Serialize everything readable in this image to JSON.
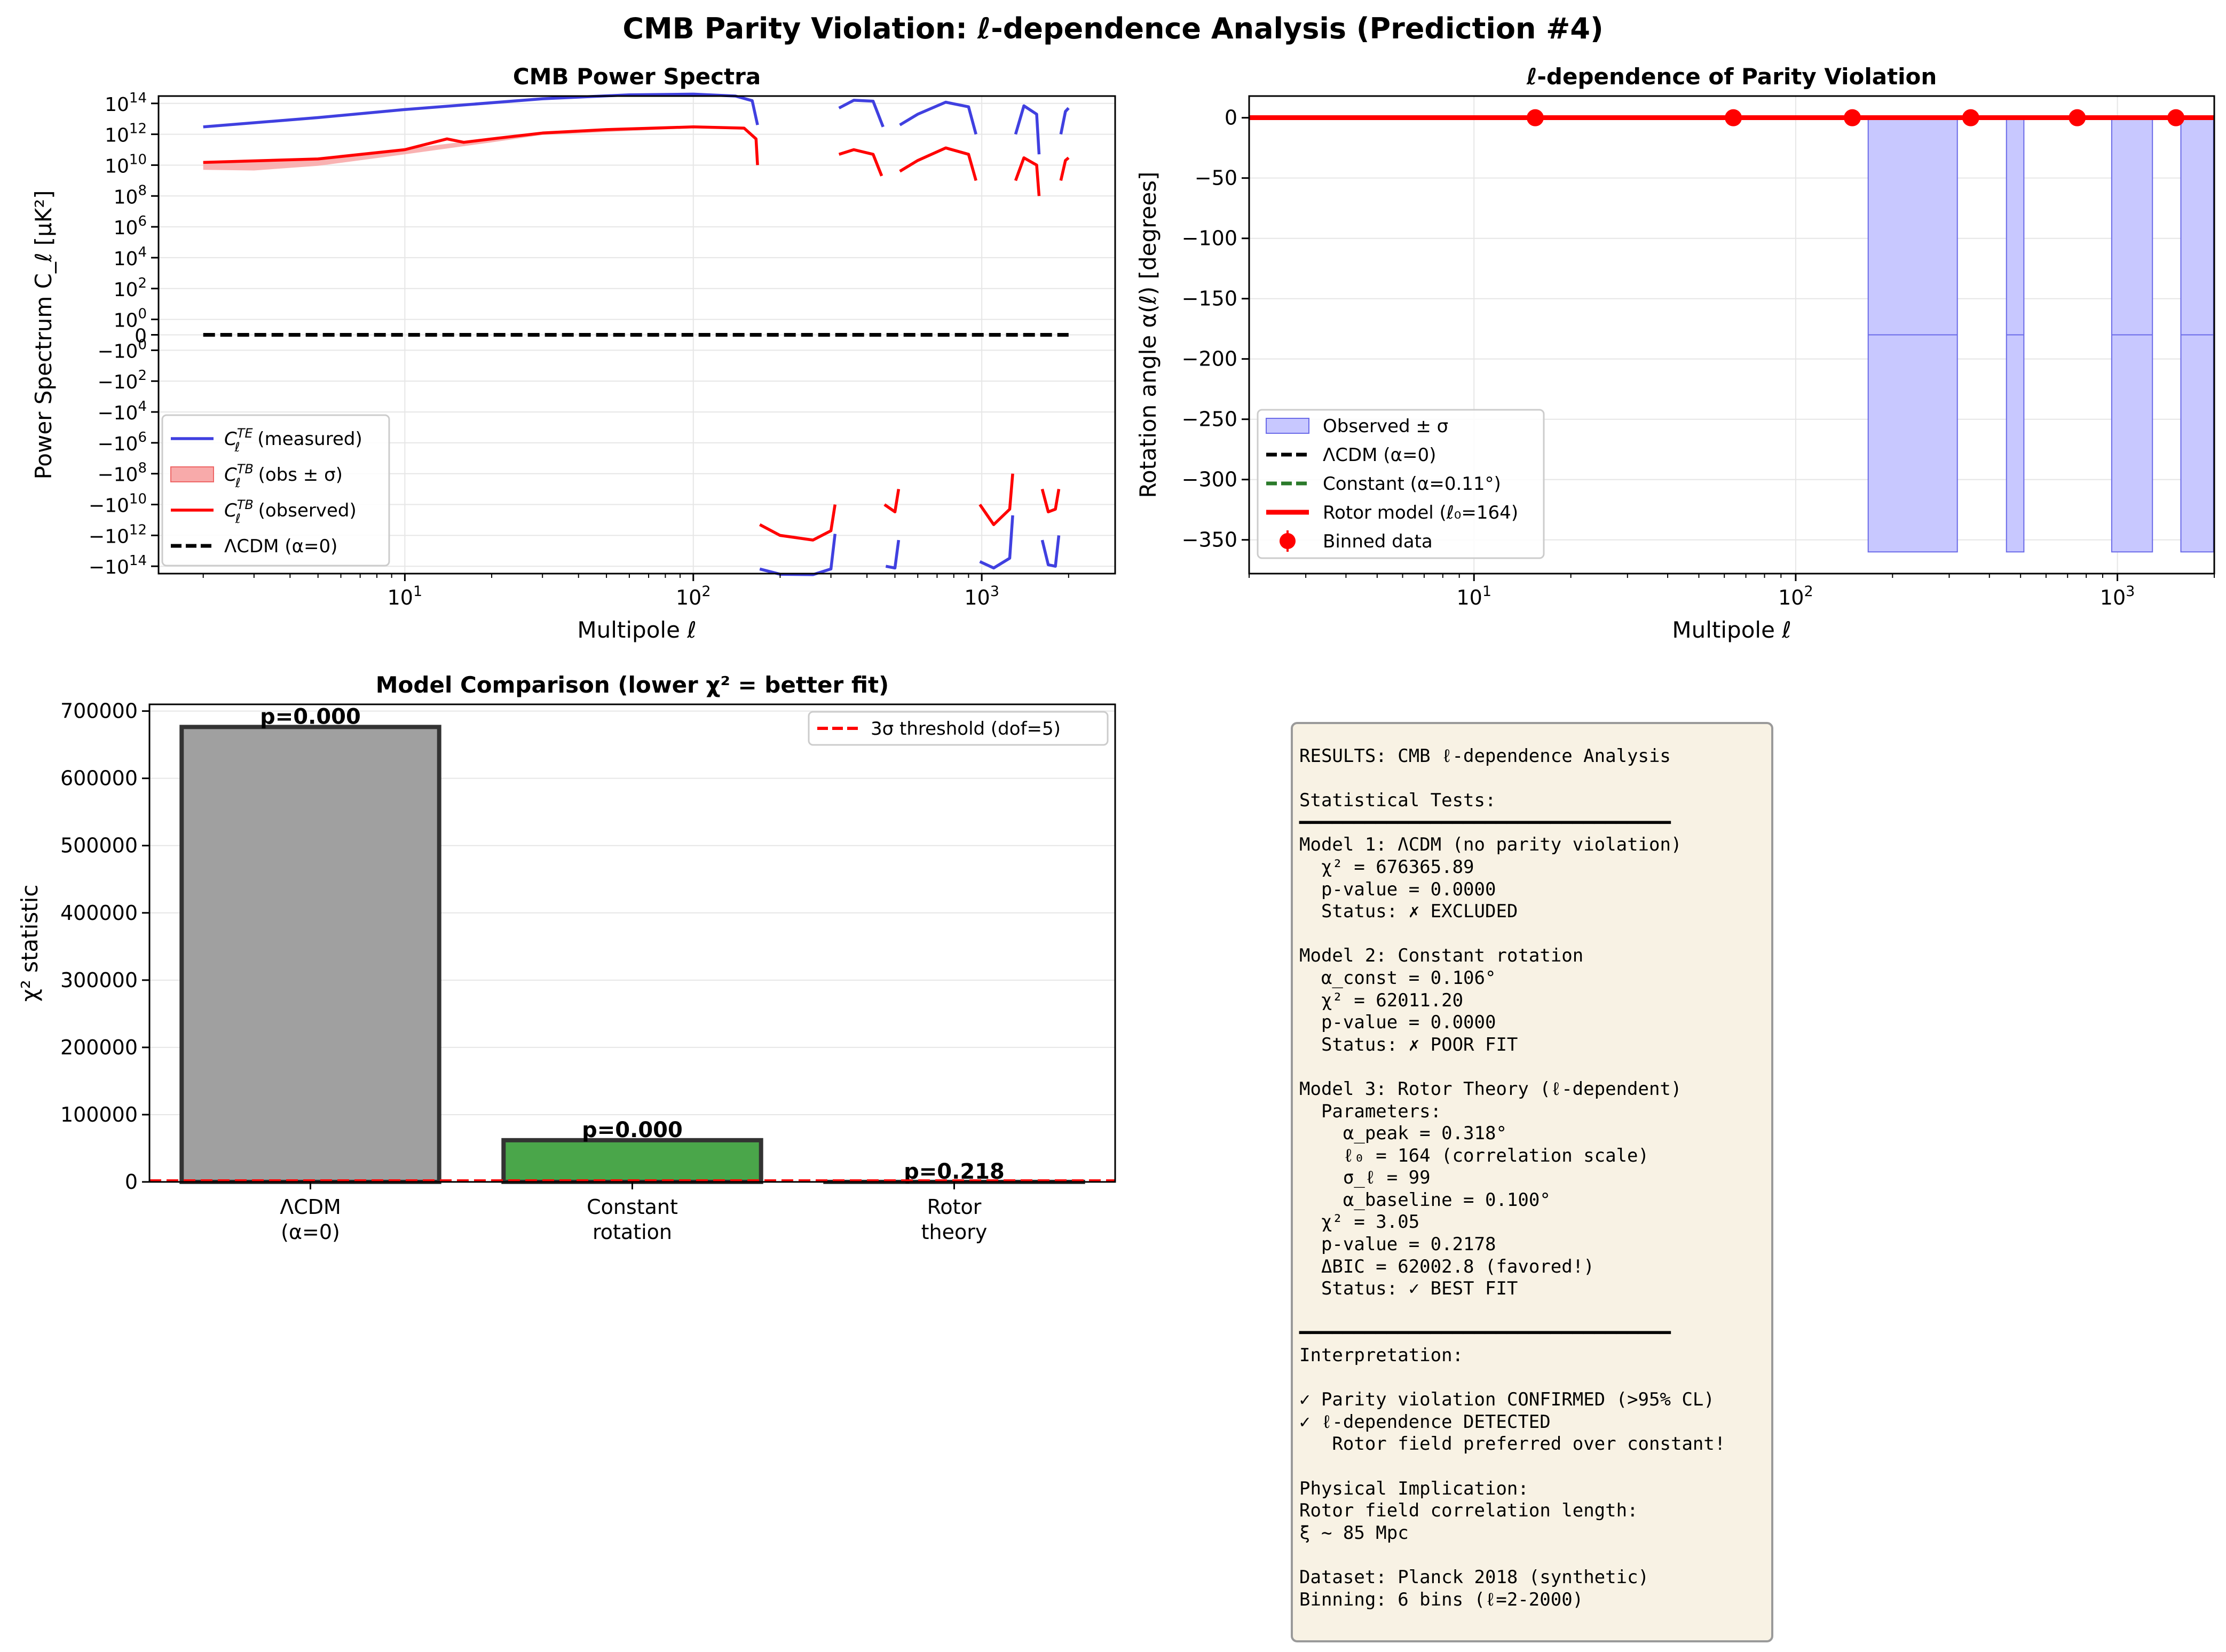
{
  "figure": {
    "title": "CMB Parity Violation: ℓ-dependence Analysis (Prediction #4)"
  },
  "colors": {
    "te": "#4040e0",
    "tb": "#ff0000",
    "tb_band": "#f8aaaa",
    "observed_band": "#c8c8ff",
    "lcdm": "#000000",
    "constant": "#2a7a2a",
    "bar_lcdm": "#a0a0a0",
    "bar_constant": "#4aa64a",
    "threshold": "#ff0000",
    "results_bg": "#f8f2e4"
  },
  "chart_data": [
    {
      "id": "power_spectra",
      "type": "line",
      "title": "CMB Power Spectra",
      "xlabel": "Multipole ℓ",
      "ylabel": "Power Spectrum C_ℓ [μK²]",
      "xscale": "log",
      "yscale": "symlog",
      "xlim": [
        1.4,
        2900
      ],
      "ylim": [
        -300000000000000.0,
        300000000000000.0
      ],
      "x_ticks": [
        {
          "value": 10,
          "label": "10",
          "sup": "1"
        },
        {
          "value": 100,
          "label": "10",
          "sup": "2"
        },
        {
          "value": 1000,
          "label": "10",
          "sup": "3"
        }
      ],
      "y_ticks": [
        {
          "value": 100000000000000.0,
          "label": "10",
          "sup": "14"
        },
        {
          "value": 1000000000000.0,
          "label": "10",
          "sup": "12"
        },
        {
          "value": 10000000000.0,
          "label": "10",
          "sup": "10"
        },
        {
          "value": 100000000.0,
          "label": "10",
          "sup": "8"
        },
        {
          "value": 1000000.0,
          "label": "10",
          "sup": "6"
        },
        {
          "value": 10000.0,
          "label": "10",
          "sup": "4"
        },
        {
          "value": 100.0,
          "label": "10",
          "sup": "2"
        },
        {
          "value": 1,
          "label": "10",
          "sup": "0"
        },
        {
          "value": 0,
          "label": "0",
          "sup": ""
        },
        {
          "value": -1,
          "label": "−10",
          "sup": "0"
        },
        {
          "value": -100.0,
          "label": "−10",
          "sup": "2"
        },
        {
          "value": -10000.0,
          "label": "−10",
          "sup": "4"
        },
        {
          "value": -1000000.0,
          "label": "−10",
          "sup": "6"
        },
        {
          "value": -100000000.0,
          "label": "−10",
          "sup": "8"
        },
        {
          "value": -10000000000.0,
          "label": "−10",
          "sup": "10"
        },
        {
          "value": -1000000000000.0,
          "label": "−10",
          "sup": "12"
        },
        {
          "value": -100000000000000.0,
          "label": "−10",
          "sup": "14"
        }
      ],
      "legend_position": "lower-left",
      "legend": [
        {
          "kind": "line",
          "color_key": "te",
          "base": "C",
          "sub": "ℓ",
          "sup": "TE",
          "text": " (measured)"
        },
        {
          "kind": "patch",
          "color_key": "tb_band",
          "base": "C",
          "sub": "ℓ",
          "sup": "TB",
          "text": " (obs ± σ)"
        },
        {
          "kind": "line",
          "color_key": "tb",
          "base": "C",
          "sub": "ℓ",
          "sup": "TB",
          "text": " (observed)"
        },
        {
          "kind": "dashed",
          "color_key": "lcdm",
          "base": "",
          "sub": "",
          "sup": "",
          "text": "ΛCDM (α=0)"
        }
      ],
      "series": [
        {
          "name": "C_ℓ^TE (measured)",
          "style": "line",
          "color_key": "te",
          "segments": [
            [
              [
                2,
                3000000000000.0
              ],
              [
                5,
                12000000000000.0
              ],
              [
                10,
                40000000000000.0
              ],
              [
                30,
                200000000000000.0
              ],
              [
                60,
                360000000000000.0
              ],
              [
                100,
                400000000000000.0
              ],
              [
                140,
                300000000000000.0
              ],
              [
                160,
                150000000000000.0
              ],
              [
                167,
                4000000000000.0
              ]
            ],
            [
              [
                170,
                -150000000000000.0
              ],
              [
                200,
                -330000000000000.0
              ],
              [
                260,
                -350000000000000.0
              ],
              [
                300,
                -150000000000000.0
              ],
              [
                310,
                -800000000000.0
              ]
            ],
            [
              [
                320,
                50000000000000.0
              ],
              [
                360,
                160000000000000.0
              ],
              [
                420,
                140000000000000.0
              ],
              [
                455,
                3000000000000.0
              ]
            ],
            [
              [
                465,
                -100000000000000.0
              ],
              [
                500,
                -130000000000000.0
              ],
              [
                515,
                -2000000000000.0
              ]
            ],
            [
              [
                520,
                4000000000000.0
              ],
              [
                600,
                20000000000000.0
              ],
              [
                750,
                120000000000000.0
              ],
              [
                900,
                60000000000000.0
              ],
              [
                955,
                1000000000000.0
              ]
            ],
            [
              [
                985,
                -50000000000000.0
              ],
              [
                1100,
                -130000000000000.0
              ],
              [
                1250,
                -30000000000000.0
              ],
              [
                1280,
                -50000000000.0
              ]
            ],
            [
              [
                1310,
                1000000000000.0
              ],
              [
                1400,
                70000000000000.0
              ],
              [
                1550,
                20000000000000.0
              ],
              [
                1580,
                50000000000.0
              ]
            ],
            [
              [
                1620,
                -2000000000000.0
              ],
              [
                1700,
                -80000000000000.0
              ],
              [
                1800,
                -100000000000000.0
              ],
              [
                1850,
                -1000000000000.0
              ]
            ],
            [
              [
                1880,
                1000000000000.0
              ],
              [
                1950,
                30000000000000.0
              ],
              [
                2000,
                50000000000000.0
              ]
            ]
          ]
        },
        {
          "name": "C_ℓ^TB (observed)",
          "style": "line",
          "color_key": "tb",
          "segments": [
            [
              [
                2,
                15000000000.0
              ],
              [
                5,
                25000000000.0
              ],
              [
                10,
                100000000000.0
              ],
              [
                14,
                500000000000.0
              ],
              [
                16,
                300000000000.0
              ],
              [
                20,
                500000000000.0
              ],
              [
                30,
                1200000000000.0
              ],
              [
                50,
                2000000000000.0
              ],
              [
                100,
                3000000000000.0
              ],
              [
                150,
                2500000000000.0
              ],
              [
                165,
                500000000000.0
              ],
              [
                167,
                10000000000.0
              ]
            ],
            [
              [
                170,
                -200000000000.0
              ],
              [
                200,
                -1000000000000.0
              ],
              [
                260,
                -2000000000000.0
              ],
              [
                300,
                -500000000000.0
              ],
              [
                310,
                -10000000000.0
              ]
            ],
            [
              [
                320,
                50000000000.0
              ],
              [
                360,
                100000000000.0
              ],
              [
                420,
                50000000000.0
              ],
              [
                450,
                2000000000.0
              ]
            ],
            [
              [
                460,
                -10000000000.0
              ],
              [
                500,
                -30000000000.0
              ],
              [
                515,
                -1000000000.0
              ]
            ],
            [
              [
                520,
                4000000000.0
              ],
              [
                600,
                20000000000.0
              ],
              [
                750,
                130000000000.0
              ],
              [
                900,
                50000000000.0
              ],
              [
                955,
                1000000000.0
              ]
            ],
            [
              [
                985,
                -10000000000.0
              ],
              [
                1100,
                -200000000000.0
              ],
              [
                1250,
                -20000000000.0
              ],
              [
                1280,
                -100000000.0
              ]
            ],
            [
              [
                1310,
                1000000000.0
              ],
              [
                1400,
                30000000000.0
              ],
              [
                1550,
                10000000000.0
              ],
              [
                1580,
                100000000.0
              ]
            ],
            [
              [
                1620,
                -1000000000.0
              ],
              [
                1700,
                -30000000000.0
              ],
              [
                1800,
                -20000000000.0
              ],
              [
                1850,
                -1000000000.0
              ]
            ],
            [
              [
                1880,
                1000000000.0
              ],
              [
                1950,
                20000000000.0
              ],
              [
                2000,
                30000000000.0
              ]
            ]
          ]
        },
        {
          "name": "ΛCDM (α=0)",
          "style": "dashed",
          "color_key": "lcdm",
          "segments": [
            [
              [
                2,
                0
              ],
              [
                2000,
                0
              ]
            ]
          ]
        }
      ],
      "band": {
        "name": "C_ℓ^TB (obs ± σ)",
        "color_key": "tb_band",
        "upper": [
          [
            2,
            16000000000.0
          ],
          [
            5,
            28000000000.0
          ],
          [
            10,
            110000000000.0
          ],
          [
            20,
            550000000000.0
          ],
          [
            30,
            1300000000000.0
          ],
          [
            100,
            3200000000000.0
          ],
          [
            150,
            2700000000000.0
          ]
        ],
        "lower": [
          [
            2,
            5000000000.0
          ],
          [
            3,
            4500000000.0
          ],
          [
            5,
            9000000000.0
          ],
          [
            10,
            50000000000.0
          ],
          [
            20,
            300000000000.0
          ],
          [
            30,
            900000000000.0
          ],
          [
            100,
            2500000000000.0
          ],
          [
            150,
            2000000000000.0
          ]
        ]
      }
    },
    {
      "id": "alpha_ell",
      "type": "line",
      "title": "ℓ-dependence of Parity Violation",
      "xlabel": "Multipole ℓ",
      "ylabel": "Rotation angle α(ℓ) [degrees]",
      "xscale": "log",
      "xlim": [
        2,
        2000
      ],
      "ylim": [
        -378,
        18
      ],
      "x_ticks": [
        {
          "value": 10,
          "label": "10",
          "sup": "1"
        },
        {
          "value": 100,
          "label": "10",
          "sup": "2"
        },
        {
          "value": 1000,
          "label": "10",
          "sup": "3"
        }
      ],
      "y_ticks": [
        {
          "value": 0,
          "label": "0"
        },
        {
          "value": -50,
          "label": "−50"
        },
        {
          "value": -100,
          "label": "−100"
        },
        {
          "value": -150,
          "label": "−150"
        },
        {
          "value": -200,
          "label": "−200"
        },
        {
          "value": -250,
          "label": "−250"
        },
        {
          "value": -300,
          "label": "−300"
        },
        {
          "value": -350,
          "label": "−350"
        }
      ],
      "legend_position": "lower-left",
      "legend": [
        {
          "kind": "patch",
          "color_key": "observed_band",
          "text": "Observed ± σ"
        },
        {
          "kind": "dashed",
          "color_key": "lcdm",
          "text": "ΛCDM (α=0)"
        },
        {
          "kind": "dashed",
          "color_key": "constant",
          "text": "Constant (α=0.11°)"
        },
        {
          "kind": "thick",
          "color_key": "tb",
          "text": "Rotor model (ℓ₀=164)"
        },
        {
          "kind": "marker",
          "color_key": "tb",
          "text": "Binned data"
        }
      ],
      "observed_band_regions": [
        {
          "x0": 168,
          "x1": 318,
          "top": 0,
          "mid": -180,
          "bottom": -360
        },
        {
          "x0": 452,
          "x1": 512,
          "top": 0,
          "mid": -180,
          "bottom": -360
        },
        {
          "x0": 960,
          "x1": 1285,
          "top": 0,
          "mid": -180,
          "bottom": -360
        },
        {
          "x0": 1575,
          "x1": 1990,
          "top": 0,
          "mid": -180,
          "bottom": -360
        }
      ],
      "series": [
        {
          "name": "ΛCDM (α=0)",
          "color_key": "lcdm",
          "style": "dashed",
          "x": [
            2,
            2000
          ],
          "y": [
            0,
            0
          ]
        },
        {
          "name": "Constant (α=0.11°)",
          "color_key": "constant",
          "style": "dashed",
          "x": [
            2,
            2000
          ],
          "y": [
            0.11,
            0.11
          ]
        },
        {
          "name": "Rotor model (ℓ₀=164)",
          "color_key": "tb",
          "style": "thick",
          "x": [
            2,
            2000
          ],
          "y": [
            0.1,
            0.1
          ]
        }
      ],
      "binned": {
        "name": "Binned data",
        "x": [
          15.5,
          64,
          150,
          350,
          750,
          1520
        ],
        "y": [
          0,
          0,
          0,
          0,
          0,
          0
        ]
      }
    },
    {
      "id": "model_comparison",
      "type": "bar",
      "title": "Model Comparison (lower χ² = better fit)",
      "ylabel": "χ² statistic",
      "ylim": [
        0,
        710000
      ],
      "y_ticks": [
        0,
        100000,
        200000,
        300000,
        400000,
        500000,
        600000,
        700000
      ],
      "categories": [
        [
          "ΛCDM",
          "(α=0)"
        ],
        [
          "Constant",
          "rotation"
        ],
        [
          "Rotor",
          "theory"
        ]
      ],
      "values": [
        676365.89,
        62011.2,
        3.05
      ],
      "bar_labels": [
        "p=0.000",
        "p=0.000",
        "p=0.218"
      ],
      "bar_color_keys": [
        "bar_lcdm",
        "bar_constant",
        "bar_lcdm"
      ],
      "threshold": {
        "value": 1500,
        "label": "3σ threshold (dof=5)"
      },
      "legend_position": "upper-right"
    }
  ],
  "results_text": "RESULTS: CMB ℓ-dependence Analysis\n\nStatistical Tests:\n━━━━━━━━━━━━━━━━━━━━━━━━━━━━━━━━━━\nModel 1: ΛCDM (no parity violation)\n  χ² = 676365.89\n  p-value = 0.0000\n  Status: ✗ EXCLUDED\n\nModel 2: Constant rotation\n  α_const = 0.106°\n  χ² = 62011.20\n  p-value = 0.0000\n  Status: ✗ POOR FIT\n\nModel 3: Rotor Theory (ℓ-dependent)\n  Parameters:\n    α_peak = 0.318°\n    ℓ₀ = 164 (correlation scale)\n    σ_ℓ = 99\n    α_baseline = 0.100°\n  χ² = 3.05\n  p-value = 0.2178\n  ΔBIC = 62002.8 (favored!)\n  Status: ✓ BEST FIT\n\n━━━━━━━━━━━━━━━━━━━━━━━━━━━━━━━━━━\nInterpretation:\n\n✓ Parity violation CONFIRMED (>95% CL)\n✓ ℓ-dependence DETECTED\n   Rotor field preferred over constant!\n\nPhysical Implication:\nRotor field correlation length:\nξ ~ 85 Mpc\n\nDataset: Planck 2018 (synthetic)\nBinning: 6 bins (ℓ=2-2000)"
}
